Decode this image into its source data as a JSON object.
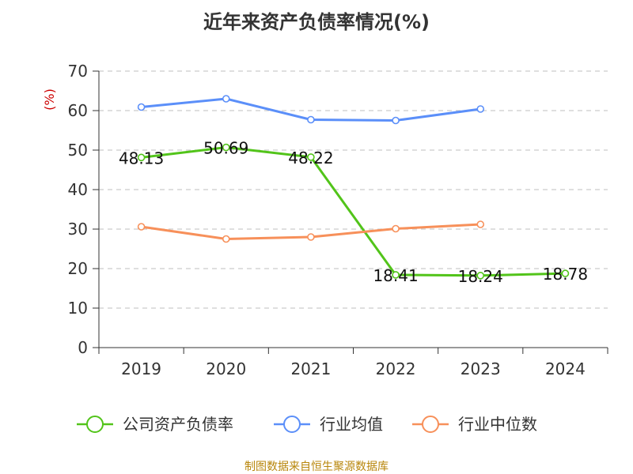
{
  "chart_data": {
    "type": "line",
    "title": "近年来资产负债率情况(%)",
    "ylabel": "(%)",
    "xlabel": "",
    "categories": [
      "2019",
      "2020",
      "2021",
      "2022",
      "2023",
      "2024"
    ],
    "ylim": [
      0,
      70
    ],
    "yticks": [
      0,
      10,
      20,
      30,
      40,
      50,
      60,
      70
    ],
    "grid": true,
    "legend_position": "bottom",
    "series": [
      {
        "name": "公司资产负债率",
        "color": "#52c41a",
        "values": [
          48.13,
          50.69,
          48.22,
          18.41,
          18.24,
          18.78
        ],
        "labels": [
          "48.13",
          "50.69",
          "48.22",
          "18.41",
          "18.24",
          "18.78"
        ]
      },
      {
        "name": "行业均值",
        "color": "#5b8ff9",
        "values": [
          60.9,
          63.0,
          57.7,
          57.5,
          60.4,
          null
        ]
      },
      {
        "name": "行业中位数",
        "color": "#f7905a",
        "values": [
          30.6,
          27.5,
          28.0,
          30.1,
          31.2,
          null
        ]
      }
    ]
  },
  "source_text": "制图数据来自恒生聚源数据库"
}
